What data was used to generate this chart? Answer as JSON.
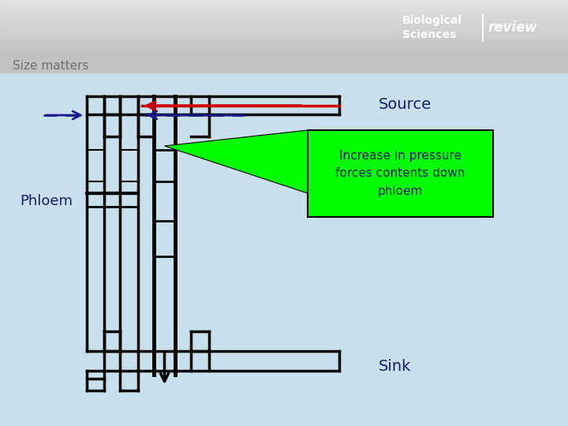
{
  "title": "Size matters",
  "bg_color": "#c8e0eb",
  "header_grad_top": "#d0d0d0",
  "header_grad_bot": "#b8b8b8",
  "title_bar_color": "#c0c0c0",
  "title_text_color": "#707070",
  "source_label": "Source",
  "sink_label": "Sink",
  "phloem_label": "Phloem",
  "annotation_text": "Increase in pressure\nforces contents down\nphloem",
  "annotation_bg": "#00ff00",
  "annotation_text_color": "#1a1a5a",
  "logo_bold": "Biological\nSciences",
  "logo_italic": "review",
  "label_color": "#1a1a6a",
  "tube_color": "#000000",
  "tube_fill": "#c8e0eb",
  "red_arrow_color": "#cc0000",
  "blue_dash_color": "#1a1a8a"
}
